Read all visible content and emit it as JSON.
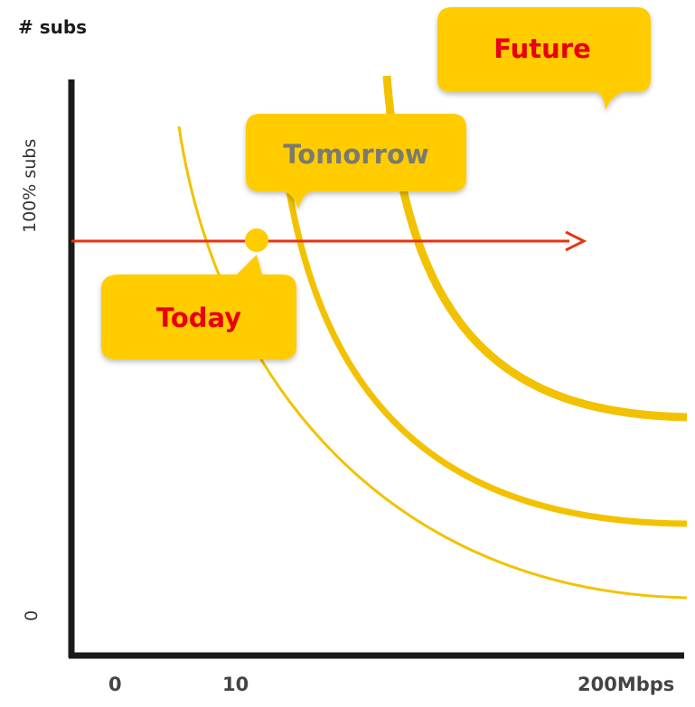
{
  "axes": {
    "y_title": "# subs",
    "y_top_label": "100% subs",
    "y_bottom_label": "0",
    "x_ticks": [
      "0",
      "10",
      "200Mbps"
    ]
  },
  "bubbles": {
    "today": "Today",
    "tomorrow": "Tomorrow",
    "future": "Future"
  },
  "colors": {
    "curve": "#f2c200",
    "bubble_fill": "#ffcc00",
    "today_text": "#e8000d",
    "future_text": "#e8000d",
    "tomorrow_text": "#7a7a70",
    "arrow": "#e63312",
    "axis": "#1a1a1a"
  }
}
